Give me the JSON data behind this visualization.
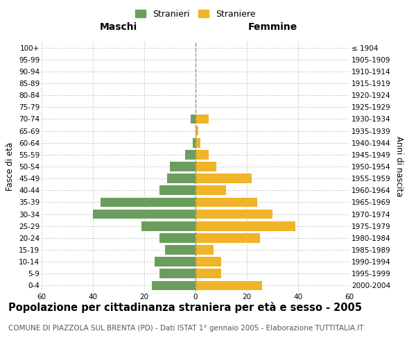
{
  "age_groups": [
    "0-4",
    "5-9",
    "10-14",
    "15-19",
    "20-24",
    "25-29",
    "30-34",
    "35-39",
    "40-44",
    "45-49",
    "50-54",
    "55-59",
    "60-64",
    "65-69",
    "70-74",
    "75-79",
    "80-84",
    "85-89",
    "90-94",
    "95-99",
    "100+"
  ],
  "birth_years": [
    "2000-2004",
    "1995-1999",
    "1990-1994",
    "1985-1989",
    "1980-1984",
    "1975-1979",
    "1970-1974",
    "1965-1969",
    "1960-1964",
    "1955-1959",
    "1950-1954",
    "1945-1949",
    "1940-1944",
    "1935-1939",
    "1930-1934",
    "1925-1929",
    "1920-1924",
    "1915-1919",
    "1910-1914",
    "1905-1909",
    "≤ 1904"
  ],
  "maschi": [
    17,
    14,
    16,
    12,
    14,
    21,
    40,
    37,
    14,
    11,
    10,
    4,
    1,
    0,
    2,
    0,
    0,
    0,
    0,
    0,
    0
  ],
  "femmine": [
    26,
    10,
    10,
    7,
    25,
    39,
    30,
    24,
    12,
    22,
    8,
    5,
    2,
    1,
    5,
    0,
    0,
    0,
    0,
    0,
    0
  ],
  "color_maschi": "#6b9e5e",
  "color_femmine": "#f0b429",
  "xlim": 60,
  "title": "Popolazione per cittadinanza straniera per età e sesso - 2005",
  "subtitle": "COMUNE DI PIAZZOLA SUL BRENTA (PD) - Dati ISTAT 1° gennaio 2005 - Elaborazione TUTTITALIA.IT",
  "ylabel_left": "Fasce di età",
  "ylabel_right": "Anni di nascita",
  "label_maschi": "Stranieri",
  "label_femmine": "Straniere",
  "header_left": "Maschi",
  "header_right": "Femmine",
  "background_color": "#ffffff",
  "grid_color": "#cccccc",
  "dashed_line_color": "#999966",
  "title_fontsize": 10.5,
  "subtitle_fontsize": 7.5,
  "tick_fontsize": 7.5,
  "header_fontsize": 10
}
